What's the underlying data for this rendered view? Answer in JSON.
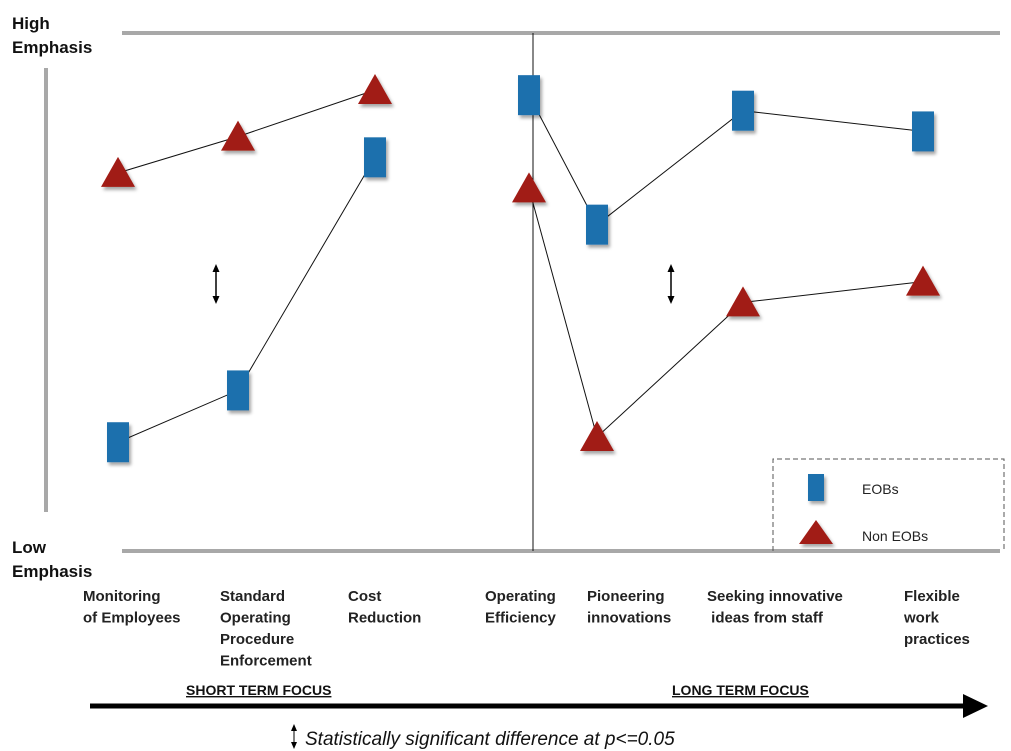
{
  "chart_data": {
    "type": "line",
    "y_axis": {
      "high_label": [
        "High",
        "Emphasis"
      ],
      "low_label": [
        "Low",
        "Emphasis"
      ],
      "ylim": [
        0,
        100
      ]
    },
    "categories": [
      [
        "Monitoring",
        "of Employees"
      ],
      [
        "Standard",
        "Operating",
        "Procedure",
        "Enforcement"
      ],
      [
        "Cost",
        "Reduction"
      ],
      [
        "Operating",
        "Efficiency"
      ],
      [
        "Pioneering",
        "innovations"
      ],
      [
        "Seeking innovative",
        " ideas from staff"
      ],
      [
        "Flexible",
        "work",
        "practices"
      ]
    ],
    "groups": [
      {
        "label": "SHORT TERM FOCUS",
        "categories": [
          0,
          1,
          2
        ]
      },
      {
        "label": "LONG TERM FOCUS",
        "categories": [
          3,
          4,
          5,
          6
        ]
      }
    ],
    "series": [
      {
        "name": "EOBs",
        "marker": "square",
        "color": "#1f6fad",
        "values": [
          21,
          31,
          76,
          88,
          63,
          85,
          81
        ]
      },
      {
        "name": "Non EOBs",
        "marker": "triangle",
        "color": "#a11a12",
        "values": [
          73,
          80,
          89,
          70,
          22,
          48,
          52
        ]
      }
    ],
    "significant_categories": [
      0,
      4
    ],
    "note": "Statistically significant difference at p<=0.05",
    "legend_position": "bottom-right"
  }
}
